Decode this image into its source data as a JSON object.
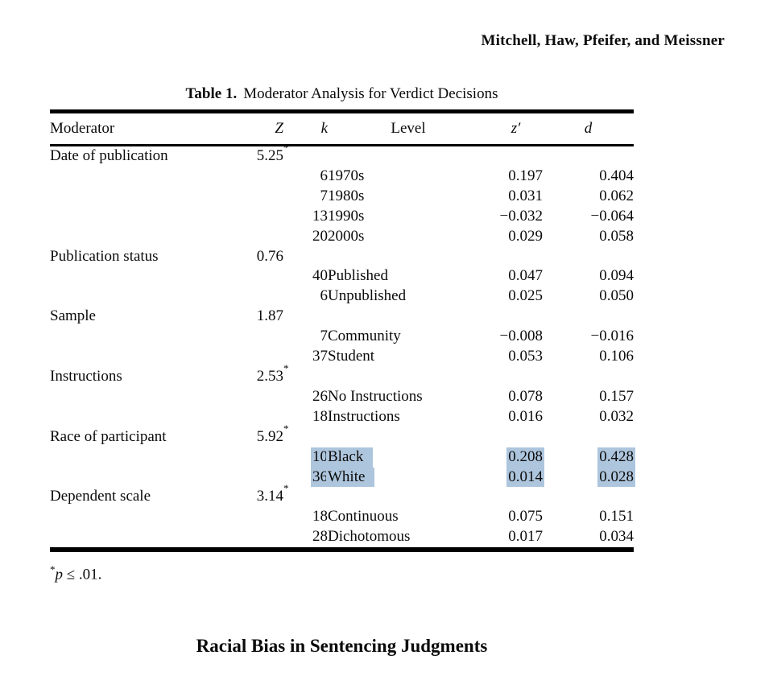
{
  "page": {
    "running_head": "Mitchell, Haw, Pfeifer, and Meissner",
    "running_foot": "Racial Bias in Sentencing Judgments"
  },
  "colors": {
    "highlight": "#aec6dd",
    "text": "#0b0b0b",
    "background": "#ffffff"
  },
  "table": {
    "caption_label": "Table 1.",
    "caption_text": "Moderator Analysis for Verdict Decisions",
    "columns": [
      "Moderator",
      "Z",
      "k",
      "Level",
      "z′",
      "d"
    ],
    "footnote": {
      "marker": "*",
      "p": "p",
      "rest": " ≤ .01."
    },
    "rows": [
      {
        "moderator": "Date of publication",
        "z": "5.25",
        "sig": true
      },
      {
        "k": "6",
        "level": "1970s",
        "zprime": "0.197",
        "d": "0.404"
      },
      {
        "k": "7",
        "level": "1980s",
        "zprime": "0.031",
        "d": "0.062"
      },
      {
        "k": "13",
        "level": "1990s",
        "zprime": "−0.032",
        "d": "−0.064"
      },
      {
        "k": "20",
        "level": "2000s",
        "zprime": "0.029",
        "d": "0.058"
      },
      {
        "moderator": "Publication status",
        "z": "0.76",
        "sig": false
      },
      {
        "k": "40",
        "level": "Published",
        "zprime": "0.047",
        "d": "0.094"
      },
      {
        "k": "6",
        "level": "Unpublished",
        "zprime": "0.025",
        "d": "0.050"
      },
      {
        "moderator": "Sample",
        "z": "1.87",
        "sig": false
      },
      {
        "k": "7",
        "level": "Community",
        "zprime": "−0.008",
        "d": "−0.016"
      },
      {
        "k": "37",
        "level": "Student",
        "zprime": "0.053",
        "d": "0.106"
      },
      {
        "moderator": "Instructions",
        "z": "2.53",
        "sig": true
      },
      {
        "k": "26",
        "level": "No Instructions",
        "zprime": "0.078",
        "d": "0.157"
      },
      {
        "k": "18",
        "level": "Instructions",
        "zprime": "0.016",
        "d": "0.032"
      },
      {
        "moderator": "Race of participant",
        "z": "5.92",
        "sig": true
      },
      {
        "k": "10",
        "level": "Black",
        "zprime": "0.208",
        "d": "0.428",
        "highlight": true
      },
      {
        "k": "36",
        "level": "White",
        "zprime": "0.014",
        "d": "0.028",
        "highlight": true
      },
      {
        "moderator": "Dependent scale",
        "z": "3.14",
        "sig": true
      },
      {
        "k": "18",
        "level": "Continuous",
        "zprime": "0.075",
        "d": "0.151"
      },
      {
        "k": "28",
        "level": "Dichotomous",
        "zprime": "0.017",
        "d": "0.034"
      }
    ]
  }
}
